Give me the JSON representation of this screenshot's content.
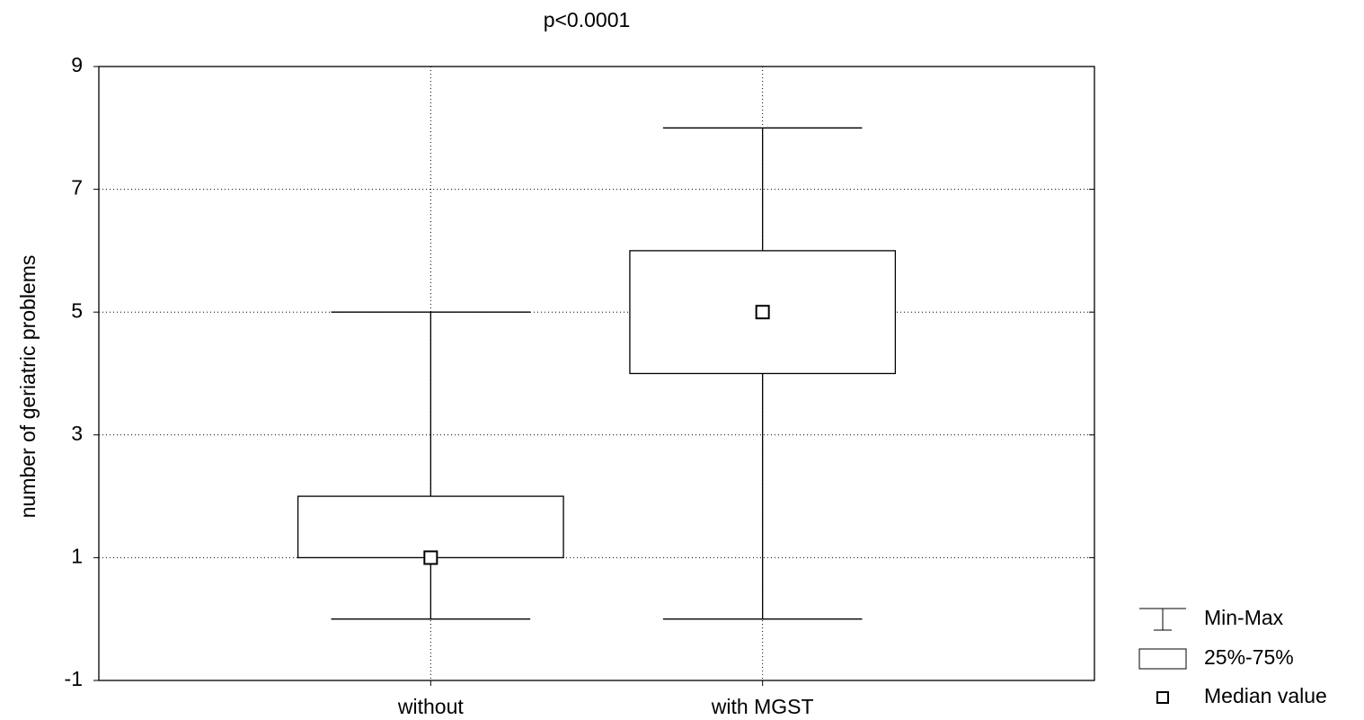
{
  "chart_data": {
    "type": "box",
    "title": "p<0.0001",
    "y_label": "number of geriatric problems",
    "categories": [
      "without",
      "with MGST"
    ],
    "boxes": [
      {
        "min": 0,
        "q1": 1,
        "median": 1,
        "q3": 2,
        "max": 5
      },
      {
        "min": 0,
        "q1": 4,
        "median": 5,
        "q3": 6,
        "max": 8
      }
    ],
    "color": "#000000",
    "box_fill": "#ffffff",
    "ylim": [
      -1,
      9
    ],
    "yticks": [
      -1,
      1,
      3,
      5,
      7,
      9
    ],
    "grid": true,
    "legend_position": "bottom-right",
    "legend_labels": [
      "Min-Max",
      "25%-75%",
      "Median value"
    ]
  }
}
